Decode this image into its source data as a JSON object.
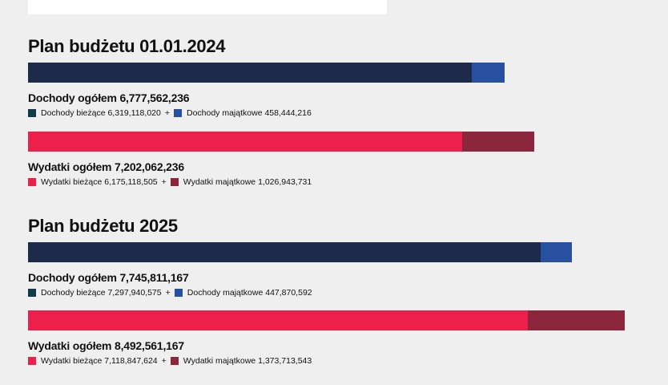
{
  "colors": {
    "income_current": "#1e2a4c",
    "income_capital": "#2750a0",
    "income_current_swatch": "#0f3a4a",
    "expense_current": "#ed1f4b",
    "expense_capital": "#8c263d"
  },
  "chart_data": {
    "type": "bar",
    "orientation": "horizontal-stacked",
    "xlim": [
      0,
      8492561167
    ],
    "sections": [
      {
        "title": "Plan budżetu 01.01.2024",
        "groups": [
          {
            "total_label": "Dochody ogółem 6,777,562,236",
            "series": [
              {
                "name": "Dochody bieżące",
                "label": "Dochody bieżące 6,319,118,020",
                "value": 6319118020
              },
              {
                "name": "Dochody majątkowe",
                "label": "Dochody majątkowe 458,444,216",
                "value": 458444216
              }
            ]
          },
          {
            "total_label": "Wydatki ogółem 7,202,062,236",
            "series": [
              {
                "name": "Wydatki bieżące",
                "label": "Wydatki bieżące 6,175,118,505",
                "value": 6175118505
              },
              {
                "name": "Wydatki majątkowe",
                "label": "Wydatki majątkowe 1,026,943,731",
                "value": 1026943731
              }
            ]
          }
        ]
      },
      {
        "title": "Plan budżetu 2025",
        "groups": [
          {
            "total_label": "Dochody ogółem 7,745,811,167",
            "series": [
              {
                "name": "Dochody bieżące",
                "label": "Dochody bieżące 7,297,940,575",
                "value": 7297940575
              },
              {
                "name": "Dochody majątkowe",
                "label": "Dochody majątkowe 447,870,592",
                "value": 447870592
              }
            ]
          },
          {
            "total_label": "Wydatki ogółem 8,492,561,167",
            "series": [
              {
                "name": "Wydatki bieżące",
                "label": "Wydatki bieżące 7,118,847,624",
                "value": 7118847624
              },
              {
                "name": "Wydatki majątkowe",
                "label": "Wydatki majątkowe 1,373,713,543",
                "value": 1373713543
              }
            ]
          }
        ]
      }
    ]
  },
  "plus_sign": "+"
}
